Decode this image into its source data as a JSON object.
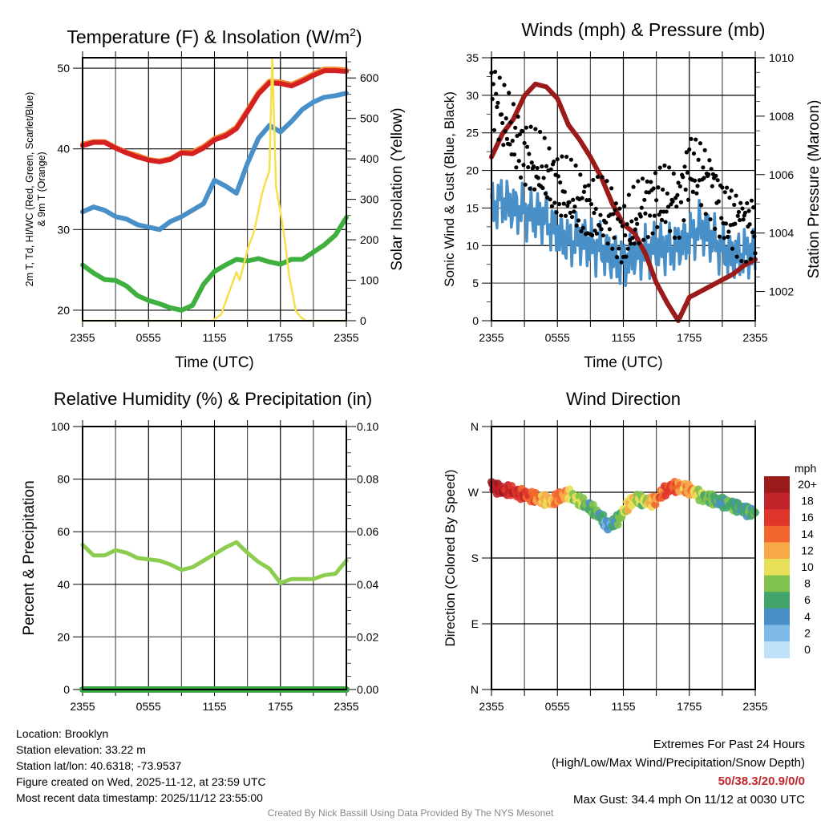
{
  "chart_data": [
    {
      "id": "temp",
      "type": "line",
      "title": "Temperature (F) & Insolation (W/m²)",
      "title_main": "Temperature (F) & Insolation (W/m",
      "title_sup": "2",
      "title_end": ")",
      "xlabel": "Time (UTC)",
      "ylabel_lines": [
        "2m T, Td, HI/WC (Red, Green, Scarlet/Blue)",
        "& 9m T (Orange)"
      ],
      "ylabel_right": "Solar Insolation (Yellow)",
      "x_ticks": [
        "2355",
        "0555",
        "1155",
        "1755",
        "2355"
      ],
      "x_range_hours": [
        0,
        24
      ],
      "ylim": [
        18.7,
        51.3
      ],
      "y_ticks": [
        20,
        30,
        40,
        50
      ],
      "ylim_right": [
        0,
        650
      ],
      "y_ticks_right": [
        0,
        100,
        200,
        300,
        400,
        500,
        600
      ],
      "grid": true,
      "series": [
        {
          "name": "9m T",
          "color": "#f4872e",
          "axis": "left",
          "x": [
            0,
            1,
            2,
            3,
            4,
            5,
            6,
            7,
            8,
            9,
            10,
            11,
            12,
            13,
            14,
            15,
            16,
            17,
            18,
            19,
            20,
            21,
            22,
            23,
            24
          ],
          "values": [
            40.6,
            40.9,
            40.9,
            40.2,
            39.6,
            39.2,
            38.7,
            38.5,
            38.8,
            39.6,
            39.6,
            40.3,
            41.3,
            41.8,
            42.7,
            44.8,
            47.0,
            48.4,
            48.3,
            48.0,
            48.6,
            49.3,
            49.9,
            49.9,
            49.8
          ]
        },
        {
          "name": "2m T",
          "color": "#d42020",
          "axis": "left",
          "x": [
            0,
            1,
            2,
            3,
            4,
            5,
            6,
            7,
            8,
            9,
            10,
            11,
            12,
            13,
            14,
            15,
            16,
            17,
            18,
            19,
            20,
            21,
            22,
            23,
            24
          ],
          "values": [
            40.4,
            40.8,
            40.8,
            40.1,
            39.5,
            39.0,
            38.6,
            38.4,
            38.7,
            39.5,
            39.4,
            40.1,
            41.1,
            41.6,
            42.5,
            44.6,
            46.8,
            48.2,
            48.1,
            47.8,
            48.4,
            49.1,
            49.7,
            49.7,
            49.6
          ]
        },
        {
          "name": "HI/WC",
          "color": "#4a90c8",
          "axis": "left",
          "x": [
            0,
            1,
            2,
            3,
            4,
            5,
            6,
            7,
            8,
            9,
            10,
            11,
            12,
            13,
            14,
            15,
            16,
            17,
            18,
            19,
            20,
            21,
            22,
            23,
            24
          ],
          "values": [
            32.2,
            32.8,
            32.4,
            31.6,
            31.3,
            30.6,
            30.3,
            30.0,
            31.0,
            31.6,
            32.4,
            33.2,
            36.1,
            35.4,
            34.5,
            38.2,
            41.3,
            42.9,
            42.1,
            43.4,
            44.9,
            45.8,
            46.4,
            46.6,
            46.9
          ]
        },
        {
          "name": "Td",
          "color": "#3fb040",
          "axis": "left",
          "x": [
            0,
            1,
            2,
            3,
            4,
            5,
            6,
            7,
            8,
            9,
            10,
            11,
            12,
            13,
            14,
            15,
            16,
            17,
            18,
            19,
            20,
            21,
            22,
            23,
            24
          ],
          "values": [
            25.6,
            24.6,
            23.8,
            23.7,
            23.0,
            21.8,
            21.2,
            20.8,
            20.3,
            20.0,
            20.6,
            23.2,
            24.8,
            25.6,
            26.3,
            26.1,
            26.4,
            26.0,
            25.7,
            26.3,
            26.3,
            27.2,
            28.1,
            29.3,
            31.5
          ]
        },
        {
          "name": "Solar Insolation",
          "color": "#f7e04a",
          "axis": "right",
          "x": [
            0,
            11.8,
            12.6,
            13.2,
            14.0,
            14.3,
            15.0,
            15.6,
            16.3,
            16.6,
            17.0,
            17.25,
            17.6,
            18.0,
            18.4,
            18.8,
            19.4,
            19.8,
            20.3,
            24
          ],
          "values": [
            0,
            0,
            15,
            60,
            120,
            100,
            175,
            220,
            310,
            340,
            370,
            650,
            330,
            270,
            200,
            110,
            25,
            10,
            0,
            0
          ]
        }
      ]
    },
    {
      "id": "wind",
      "type": "line",
      "title": "Winds (mph) & Pressure (mb)",
      "xlabel": "Time (UTC)",
      "ylabel": "Sonic Wind & Gust (Blue, Black)",
      "ylabel_right": "Station Pressure (Maroon)",
      "x_ticks": [
        "2355",
        "0555",
        "1155",
        "1755",
        "2355"
      ],
      "x_range_hours": [
        0,
        24
      ],
      "ylim": [
        0,
        35
      ],
      "y_ticks": [
        0,
        5,
        10,
        15,
        20,
        25,
        30,
        35
      ],
      "ylim_right": [
        1001,
        1010
      ],
      "y_ticks_right": [
        1002,
        1004,
        1006,
        1008,
        1010
      ],
      "grid": true,
      "series": [
        {
          "name": "Sonic Wind",
          "color": "#4a90c8",
          "axis": "left",
          "x": [
            0,
            1,
            2,
            3,
            4,
            5,
            6,
            7,
            8,
            9,
            10,
            11,
            12,
            13,
            14,
            15,
            16,
            17,
            18,
            19,
            20,
            21,
            22,
            23,
            24
          ],
          "values": [
            15,
            16,
            15,
            14.5,
            14,
            13.5,
            11.5,
            10.5,
            11,
            10,
            9.5,
            8.5,
            7.5,
            9,
            9,
            10,
            9.5,
            10,
            11,
            12.5,
            11,
            9.5,
            8.5,
            9,
            9
          ]
        },
        {
          "name": "Gust",
          "color": "#000000",
          "axis": "left",
          "style": "points",
          "x": [
            0,
            1,
            2,
            3,
            4,
            5,
            6,
            7,
            8,
            9,
            10,
            11,
            12,
            13,
            14,
            15,
            16,
            17,
            18,
            19,
            20,
            21,
            22,
            23,
            24
          ],
          "values": [
            31,
            27,
            24.5,
            22.5,
            20.5,
            19.5,
            18,
            16.5,
            15.5,
            14.5,
            14,
            13.5,
            11,
            13,
            15.5,
            16,
            16,
            15.5,
            20.5,
            19.5,
            18.5,
            14.5,
            13.5,
            13,
            12.5
          ]
        },
        {
          "name": "Station Pressure",
          "color": "#9b1b1b",
          "axis": "right",
          "x": [
            0,
            1,
            2,
            3,
            4,
            5,
            6,
            7,
            8,
            9,
            10,
            11,
            12,
            13,
            14,
            15,
            16,
            17,
            18,
            19,
            20,
            21,
            22,
            23,
            24
          ],
          "values": [
            1006.6,
            1007.4,
            1007.9,
            1008.7,
            1009.1,
            1009.0,
            1008.6,
            1007.7,
            1007.2,
            1006.6,
            1005.9,
            1005.0,
            1004.3,
            1004.0,
            1003.3,
            1002.3,
            1001.6,
            1001.0,
            1001.8,
            1002.0,
            1002.2,
            1002.4,
            1002.6,
            1002.9,
            1003.1
          ]
        }
      ]
    },
    {
      "id": "rh",
      "type": "line",
      "title": "Relative Humidity (%) & Precipitation (in)",
      "xlabel": "",
      "ylabel": "Percent & Precipitation",
      "x_ticks": [
        "2355",
        "0555",
        "1155",
        "1755",
        "2355"
      ],
      "x_range_hours": [
        0,
        24
      ],
      "ylim": [
        0,
        100
      ],
      "y_ticks": [
        0,
        20,
        40,
        60,
        80,
        100
      ],
      "ylim_right": [
        0,
        0.1
      ],
      "y_ticks_right": [
        "0.00",
        "0.02",
        "0.04",
        "0.06",
        "0.08",
        "0.10"
      ],
      "grid": true,
      "series": [
        {
          "name": "Relative Humidity",
          "color": "#8ccc4e",
          "axis": "left",
          "x": [
            0,
            1,
            2,
            3,
            4,
            5,
            6,
            7,
            8,
            9,
            10,
            11,
            12,
            13,
            14,
            15,
            16,
            17,
            18,
            19,
            20,
            21,
            22,
            23,
            24
          ],
          "values": [
            55,
            51,
            51,
            53,
            52,
            50,
            49.5,
            49,
            47.5,
            45.5,
            46.5,
            49,
            51.5,
            54,
            56,
            52,
            48.5,
            46,
            40.5,
            42,
            42,
            42,
            43.5,
            44,
            49
          ]
        },
        {
          "name": "Precipitation",
          "color": "#3aa346",
          "axis": "right",
          "x": [
            0,
            24
          ],
          "values": [
            0,
            0
          ]
        }
      ]
    },
    {
      "id": "wdir",
      "type": "scatter",
      "title": "Wind Direction",
      "xlabel": "",
      "ylabel": "Direction (Colored By Speed)",
      "x_ticks": [
        "2355",
        "0555",
        "1155",
        "1755",
        "2355"
      ],
      "x_range_hours": [
        0,
        24
      ],
      "ylim": [
        0,
        360
      ],
      "y_ticks": [
        {
          "v": 0,
          "label": "N"
        },
        {
          "v": 90,
          "label": "E"
        },
        {
          "v": 180,
          "label": "S"
        },
        {
          "v": 270,
          "label": "W"
        },
        {
          "v": 360,
          "label": "N"
        }
      ],
      "grid": true,
      "colorbar": {
        "title": "mph",
        "labels": [
          "20+",
          "18",
          "16",
          "14",
          "12",
          "10",
          "8",
          "6",
          "4",
          "2",
          "0"
        ],
        "colors": [
          "#9b1b1b",
          "#c0232a",
          "#e0352a",
          "#f2672d",
          "#f7a94a",
          "#e9e05a",
          "#7fc24c",
          "#44a56c",
          "#4a90c8",
          "#7fb9e6",
          "#bee3f8"
        ]
      },
      "series": [
        {
          "name": "Direction",
          "style": "points",
          "x": [
            0,
            0.5,
            1,
            1.5,
            2,
            2.5,
            3,
            3.5,
            4,
            4.5,
            5,
            5.5,
            6,
            6.5,
            7,
            7.5,
            8,
            8.5,
            9,
            9.5,
            10,
            10.5,
            11,
            11.5,
            12,
            12.5,
            13,
            13.5,
            14,
            14.5,
            15,
            15.5,
            16,
            16.5,
            17,
            17.5,
            18,
            18.5,
            19,
            19.5,
            20,
            20.5,
            21,
            21.5,
            22,
            22.5,
            23,
            23.5,
            24
          ],
          "values": [
            281,
            275,
            272,
            273,
            271,
            268,
            266,
            264,
            262,
            260,
            258,
            256,
            262,
            265,
            267,
            262,
            257,
            254,
            248,
            242,
            235,
            224,
            226,
            232,
            243,
            253,
            262,
            259,
            258,
            256,
            260,
            268,
            275,
            277,
            278,
            276,
            274,
            270,
            266,
            262,
            262,
            258,
            257,
            255,
            252,
            250,
            246,
            244,
            242
          ],
          "speeds": [
            21,
            19,
            20,
            18,
            19,
            17,
            17,
            16,
            15,
            13,
            12,
            12,
            15,
            14,
            12,
            9,
            10,
            8,
            7,
            8,
            6,
            4,
            6,
            8,
            10,
            12,
            11,
            9,
            10,
            12,
            14,
            15,
            17,
            16,
            15,
            13,
            14,
            12,
            9,
            8,
            8,
            7,
            6,
            8,
            7,
            7,
            6,
            7,
            7
          ]
        }
      ]
    }
  ],
  "info": {
    "location": "Location: Brooklyn",
    "elevation": "Station elevation: 33.22 m",
    "latlon": "Station lat/lon: 40.6318; -73.9537",
    "created": "Figure created on Wed, 2025-11-12, at 23:59 UTC",
    "recent": "Most recent data timestamp: 2025/11/12 23:55:00"
  },
  "extremes": {
    "title": "Extremes For Past 24 Hours",
    "subtitle": "(High/Low/Max Wind/Precipitation/Snow Depth)",
    "values": "50/38.3/20.9/0/0",
    "max_gust": "Max Gust: 34.4 mph On 11/12 at 0030 UTC"
  },
  "credit": "Created By Nick Bassill Using Data Provided By The NYS Mesonet"
}
